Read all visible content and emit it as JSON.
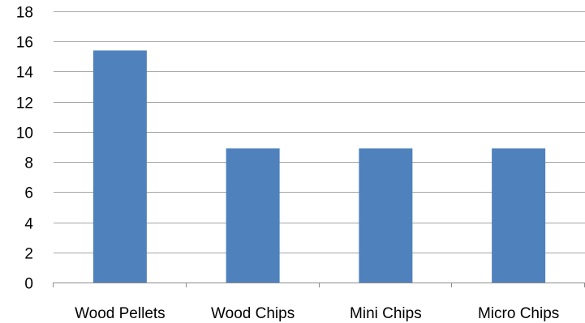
{
  "chart_data": {
    "type": "bar",
    "categories": [
      "Wood Pellets",
      "Wood Chips",
      "Mini Chips",
      "Micro Chips"
    ],
    "values": [
      15.4,
      8.9,
      8.9,
      8.9
    ],
    "ylim": [
      0,
      18
    ],
    "y_ticks": [
      0,
      2,
      4,
      6,
      8,
      10,
      12,
      14,
      16,
      18
    ],
    "grid": true,
    "legend": "none",
    "colors": {
      "bar": "#4f81bd",
      "grid": "#a6a6a6",
      "axis": "#8c8c8c"
    }
  }
}
